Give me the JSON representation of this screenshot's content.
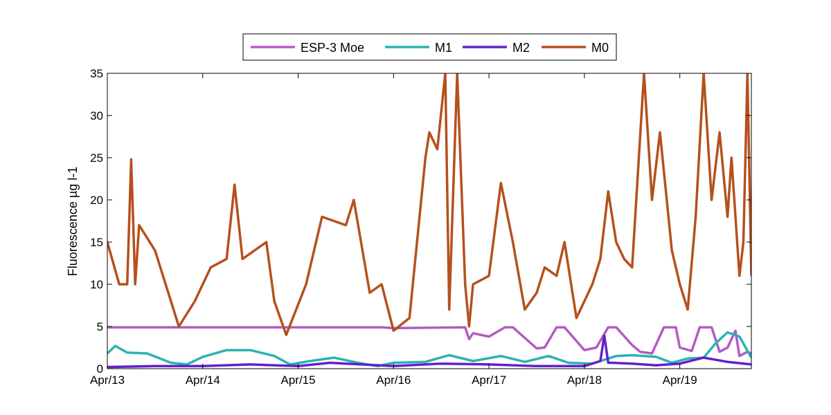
{
  "chart_data": {
    "type": "line",
    "title": "",
    "xlabel": "",
    "ylabel": "Fluorescence µg l-1",
    "x_tick_labels": [
      "Apr/13",
      "Apr/14",
      "Apr/15",
      "Apr/16",
      "Apr/17",
      "Apr/18",
      "Apr/19"
    ],
    "xlim": [
      "Apr/13",
      "Apr/19 18:00"
    ],
    "ylim": [
      0,
      35
    ],
    "y_ticks": [
      0,
      5,
      10,
      15,
      20,
      25,
      30,
      35
    ],
    "grid": false,
    "legend_position": "top-center",
    "series": [
      {
        "name": "ESP-3 Moe",
        "color": "#B45BC2",
        "x": [
          "Apr/13 00:00",
          "Apr/14 00:00",
          "Apr/15 00:00",
          "Apr/15 21:00",
          "Apr/16 00:00",
          "Apr/16 18:00",
          "Apr/16 19:00",
          "Apr/16 20:00",
          "Apr/17 00:00",
          "Apr/17 04:00",
          "Apr/17 06:00",
          "Apr/17 12:00",
          "Apr/17 14:00",
          "Apr/17 17:00",
          "Apr/17 19:00",
          "Apr/18 00:00",
          "Apr/18 03:00",
          "Apr/18 06:00",
          "Apr/18 08:00",
          "Apr/18 12:00",
          "Apr/18 14:00",
          "Apr/18 17:00",
          "Apr/18 20:00",
          "Apr/18 23:00",
          "Apr/19 00:00",
          "Apr/19 03:00",
          "Apr/19 05:00",
          "Apr/19 08:00",
          "Apr/19 10:00",
          "Apr/19 12:00",
          "Apr/19 14:00",
          "Apr/19 15:00",
          "Apr/19 17:00",
          "Apr/19 18:00"
        ],
        "y": [
          4.9,
          4.9,
          4.9,
          4.9,
          4.8,
          4.9,
          3.5,
          4.2,
          3.8,
          4.9,
          4.9,
          2.4,
          2.5,
          4.9,
          4.9,
          2.2,
          2.5,
          4.9,
          4.9,
          2.8,
          2.0,
          1.8,
          4.9,
          4.9,
          2.5,
          2.1,
          4.9,
          4.9,
          2.0,
          2.5,
          4.5,
          1.5,
          2.0,
          1.8
        ]
      },
      {
        "name": "M1",
        "color": "#2AB3B3",
        "x": [
          "Apr/13 00:00",
          "Apr/13 02:00",
          "Apr/13 05:00",
          "Apr/13 10:00",
          "Apr/13 16:00",
          "Apr/13 20:00",
          "Apr/14 00:00",
          "Apr/14 06:00",
          "Apr/14 12:00",
          "Apr/14 18:00",
          "Apr/14 22:00",
          "Apr/15 03:00",
          "Apr/15 09:00",
          "Apr/15 15:00",
          "Apr/15 20:00",
          "Apr/16 00:00",
          "Apr/16 08:00",
          "Apr/16 14:00",
          "Apr/16 20:00",
          "Apr/17 03:00",
          "Apr/17 09:00",
          "Apr/17 15:00",
          "Apr/17 20:00",
          "Apr/18 02:00",
          "Apr/18 08:00",
          "Apr/18 12:00",
          "Apr/18 18:00",
          "Apr/18 22:00",
          "Apr/19 02:00",
          "Apr/19 06:00",
          "Apr/19 09:00",
          "Apr/19 12:00",
          "Apr/19 15:00",
          "Apr/19 18:00"
        ],
        "y": [
          1.8,
          2.7,
          1.9,
          1.8,
          0.7,
          0.5,
          1.4,
          2.2,
          2.2,
          1.5,
          0.5,
          0.9,
          1.3,
          0.7,
          0.3,
          0.7,
          0.8,
          1.6,
          0.9,
          1.5,
          0.8,
          1.5,
          0.7,
          0.6,
          1.5,
          1.6,
          1.4,
          0.7,
          1.2,
          1.3,
          3.0,
          4.3,
          3.8,
          1.3
        ]
      },
      {
        "name": "M2",
        "color": "#6320C8",
        "x": [
          "Apr/13 00:00",
          "Apr/13 12:00",
          "Apr/14 00:00",
          "Apr/14 12:00",
          "Apr/15 00:00",
          "Apr/15 08:00",
          "Apr/15 16:00",
          "Apr/16 00:00",
          "Apr/16 12:00",
          "Apr/17 00:00",
          "Apr/17 12:00",
          "Apr/18 00:00",
          "Apr/18 04:00",
          "Apr/18 05:00",
          "Apr/18 06:00",
          "Apr/18 07:00",
          "Apr/18 12:00",
          "Apr/18 18:00",
          "Apr/19 00:00",
          "Apr/19 06:00",
          "Apr/19 12:00",
          "Apr/19 18:00"
        ],
        "y": [
          0.2,
          0.3,
          0.3,
          0.5,
          0.3,
          0.7,
          0.5,
          0.3,
          0.6,
          0.5,
          0.3,
          0.3,
          0.9,
          3.9,
          0.7,
          0.7,
          0.6,
          0.4,
          0.6,
          1.3,
          0.8,
          0.5
        ]
      },
      {
        "name": "M0",
        "color": "#B5501D",
        "x": [
          "Apr/13 00:00",
          "Apr/13 03:00",
          "Apr/13 05:00",
          "Apr/13 06:00",
          "Apr/13 07:00",
          "Apr/13 08:00",
          "Apr/13 12:00",
          "Apr/13 18:00",
          "Apr/13 22:00",
          "Apr/14 02:00",
          "Apr/14 06:00",
          "Apr/14 08:00",
          "Apr/14 10:00",
          "Apr/14 13:00",
          "Apr/14 16:00",
          "Apr/14 18:00",
          "Apr/14 21:00",
          "Apr/15 02:00",
          "Apr/15 06:00",
          "Apr/15 12:00",
          "Apr/15 14:00",
          "Apr/15 18:00",
          "Apr/15 21:00",
          "Apr/16 00:00",
          "Apr/16 04:00",
          "Apr/16 08:00",
          "Apr/16 09:00",
          "Apr/16 11:00",
          "Apr/16 13:00",
          "Apr/16 14:00",
          "Apr/16 16:00",
          "Apr/16 18:00",
          "Apr/16 19:00",
          "Apr/16 20:00",
          "Apr/17 00:00",
          "Apr/17 03:00",
          "Apr/17 06:00",
          "Apr/17 09:00",
          "Apr/17 12:00",
          "Apr/17 14:00",
          "Apr/17 17:00",
          "Apr/17 19:00",
          "Apr/17 22:00",
          "Apr/18 02:00",
          "Apr/18 04:00",
          "Apr/18 06:00",
          "Apr/18 08:00",
          "Apr/18 10:00",
          "Apr/18 12:00",
          "Apr/18 15:00",
          "Apr/18 17:00",
          "Apr/18 19:00",
          "Apr/18 22:00",
          "Apr/19 00:00",
          "Apr/19 02:00",
          "Apr/19 04:00",
          "Apr/19 06:00",
          "Apr/19 08:00",
          "Apr/19 10:00",
          "Apr/19 12:00",
          "Apr/19 13:00",
          "Apr/19 15:00",
          "Apr/19 16:00",
          "Apr/19 17:00",
          "Apr/19 18:00"
        ],
        "y": [
          15,
          10,
          10,
          24.8,
          10,
          17,
          14,
          5,
          8,
          12,
          13,
          21.8,
          13,
          14,
          15,
          8,
          4,
          10,
          18,
          17,
          20,
          9,
          10,
          4.5,
          6,
          25,
          28,
          26,
          35,
          7,
          35,
          10,
          5,
          10,
          11,
          22,
          15,
          7,
          9,
          12,
          11,
          15,
          6,
          10,
          13,
          21,
          15,
          13,
          12,
          35,
          20,
          28,
          14,
          10,
          7,
          18,
          35,
          20,
          28,
          18,
          25,
          11,
          15,
          35,
          11
        ]
      }
    ]
  }
}
